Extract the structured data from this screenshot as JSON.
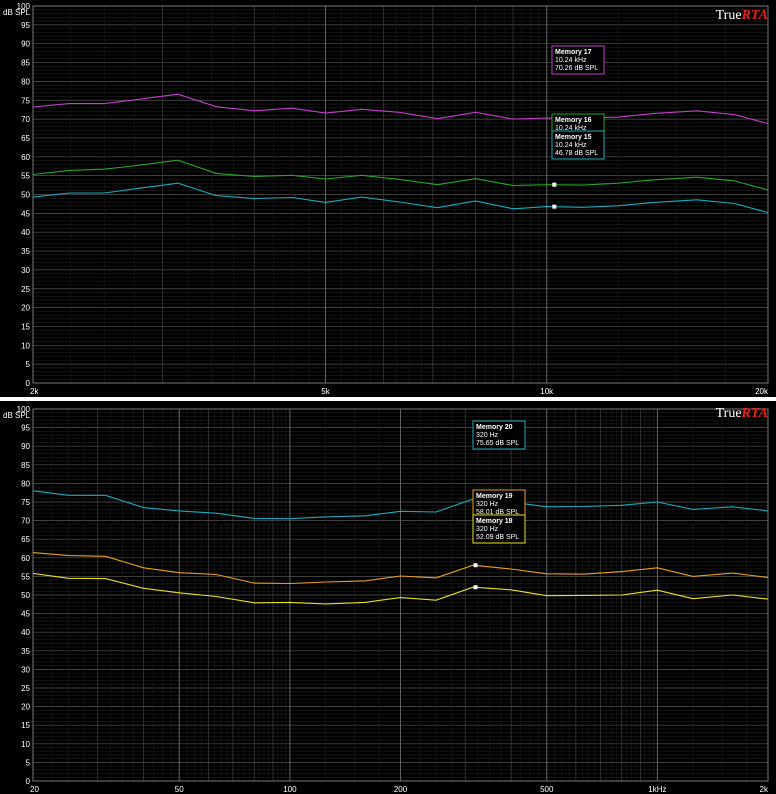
{
  "brand": {
    "true_text": "True",
    "rta_text": "RTA"
  },
  "chart_data": [
    {
      "type": "line",
      "title": "",
      "xlabel": "",
      "ylabel": "dB SPL",
      "x_scale": "log",
      "xlim": [
        2000,
        20000
      ],
      "ylim": [
        0,
        100
      ],
      "y_ticks": [
        0,
        5,
        10,
        15,
        20,
        25,
        30,
        35,
        40,
        45,
        50,
        55,
        60,
        65,
        70,
        75,
        80,
        85,
        90,
        95,
        100
      ],
      "x_tick_labels": [
        {
          "value": 2000,
          "label": "2k"
        },
        {
          "value": 5000,
          "label": "5k"
        },
        {
          "value": 10000,
          "label": "10k"
        },
        {
          "value": 20000,
          "label": "20k"
        }
      ],
      "grid": true,
      "x": [
        2000,
        2240,
        2500,
        2800,
        3150,
        3550,
        4000,
        4500,
        5000,
        5600,
        6300,
        7100,
        8000,
        9000,
        10000,
        11200,
        12500,
        14000,
        16000,
        18000,
        20000
      ],
      "series": [
        {
          "name": "Memory 17",
          "color": "#c040c8",
          "values": [
            73.2,
            74.1,
            74.1,
            75.3,
            76.6,
            73.3,
            72.2,
            72.9,
            71.6,
            72.6,
            71.8,
            70.1,
            71.8,
            70.0,
            70.3,
            70.3,
            70.5,
            71.5,
            72.2,
            71.2,
            68.8
          ]
        },
        {
          "name": "Memory 16",
          "color": "#2ea02e",
          "values": [
            55.3,
            56.4,
            56.7,
            57.8,
            59.1,
            55.6,
            54.8,
            55.1,
            54.1,
            55.1,
            54.0,
            52.6,
            54.2,
            52.4,
            52.6,
            52.5,
            53.0,
            53.9,
            54.6,
            53.6,
            51.2
          ]
        },
        {
          "name": "Memory 15",
          "color": "#20a8b8",
          "values": [
            49.3,
            50.4,
            50.4,
            51.7,
            53.0,
            49.7,
            48.9,
            49.2,
            47.9,
            49.3,
            48.0,
            46.5,
            48.3,
            46.2,
            46.8,
            46.6,
            47.0,
            47.9,
            48.6,
            47.6,
            45.2
          ]
        }
      ],
      "annotations": [
        {
          "series": "Memory 17",
          "lines": [
            "Memory 17",
            "10.24 kHz",
            "70.26 dB SPL"
          ],
          "color": "#c040c8",
          "marker": [
            10240,
            70.26
          ]
        },
        {
          "series": "Memory 16",
          "lines": [
            "Memory 16",
            "10.24 kHz",
            "52.61 dB SPL"
          ],
          "color": "#2ea02e",
          "marker": [
            10240,
            52.61
          ]
        },
        {
          "series": "Memory 15",
          "lines": [
            "Memory 15",
            "10.24 kHz",
            "46.78 dB SPL"
          ],
          "color": "#20a8b8",
          "marker": [
            10240,
            46.78
          ]
        }
      ]
    },
    {
      "type": "line",
      "title": "",
      "xlabel": "",
      "ylabel": "dB SPL",
      "x_scale": "log",
      "xlim": [
        20,
        2000
      ],
      "ylim": [
        0,
        100
      ],
      "y_ticks": [
        0,
        5,
        10,
        15,
        20,
        25,
        30,
        35,
        40,
        45,
        50,
        55,
        60,
        65,
        70,
        75,
        80,
        85,
        90,
        95,
        100
      ],
      "x_tick_labels": [
        {
          "value": 20,
          "label": "20"
        },
        {
          "value": 50,
          "label": "50"
        },
        {
          "value": 100,
          "label": "100"
        },
        {
          "value": 200,
          "label": "200"
        },
        {
          "value": 500,
          "label": "500"
        },
        {
          "value": 1000,
          "label": "1kHz"
        },
        {
          "value": 2000,
          "label": "2k"
        }
      ],
      "grid": true,
      "x": [
        20,
        25,
        31.5,
        40,
        50,
        63,
        80,
        100,
        125,
        160,
        200,
        250,
        315,
        400,
        500,
        630,
        800,
        1000,
        1250,
        1600,
        2000
      ],
      "series": [
        {
          "name": "Memory 20",
          "color": "#20a8b8",
          "values": [
            78.0,
            76.8,
            76.8,
            73.5,
            72.6,
            72.0,
            70.6,
            70.5,
            71.0,
            71.3,
            72.5,
            72.3,
            75.8,
            75.0,
            73.7,
            73.8,
            74.1,
            75.0,
            73.0,
            73.7,
            72.6
          ]
        },
        {
          "name": "Memory 19",
          "color": "#e8a020",
          "values": [
            61.4,
            60.6,
            60.4,
            57.3,
            56.0,
            55.5,
            53.2,
            53.1,
            53.5,
            53.8,
            55.1,
            54.6,
            58.0,
            57.0,
            55.7,
            55.6,
            56.3,
            57.3,
            55.0,
            55.9,
            54.7
          ]
        },
        {
          "name": "Memory 18",
          "color": "#e8e020",
          "values": [
            55.8,
            54.5,
            54.4,
            51.8,
            50.6,
            49.6,
            47.9,
            48.0,
            47.6,
            48.0,
            49.3,
            48.6,
            52.1,
            51.4,
            49.8,
            49.9,
            50.0,
            51.3,
            49.0,
            50.0,
            48.9
          ]
        }
      ],
      "annotations": [
        {
          "series": "Memory 20",
          "lines": [
            "Memory 20",
            "320 Hz",
            "75.65 dB SPL"
          ],
          "color": "#20a8b8",
          "marker": [
            320,
            75.65
          ]
        },
        {
          "series": "Memory 19",
          "lines": [
            "Memory 19",
            "320 Hz",
            "58.01 dB SPL"
          ],
          "color": "#e8a020",
          "marker": [
            320,
            58.01
          ]
        },
        {
          "series": "Memory 18",
          "lines": [
            "Memory 18",
            "320 Hz",
            "52.09 dB SPL"
          ],
          "color": "#e8e020",
          "marker": [
            320,
            52.09
          ]
        }
      ]
    }
  ]
}
